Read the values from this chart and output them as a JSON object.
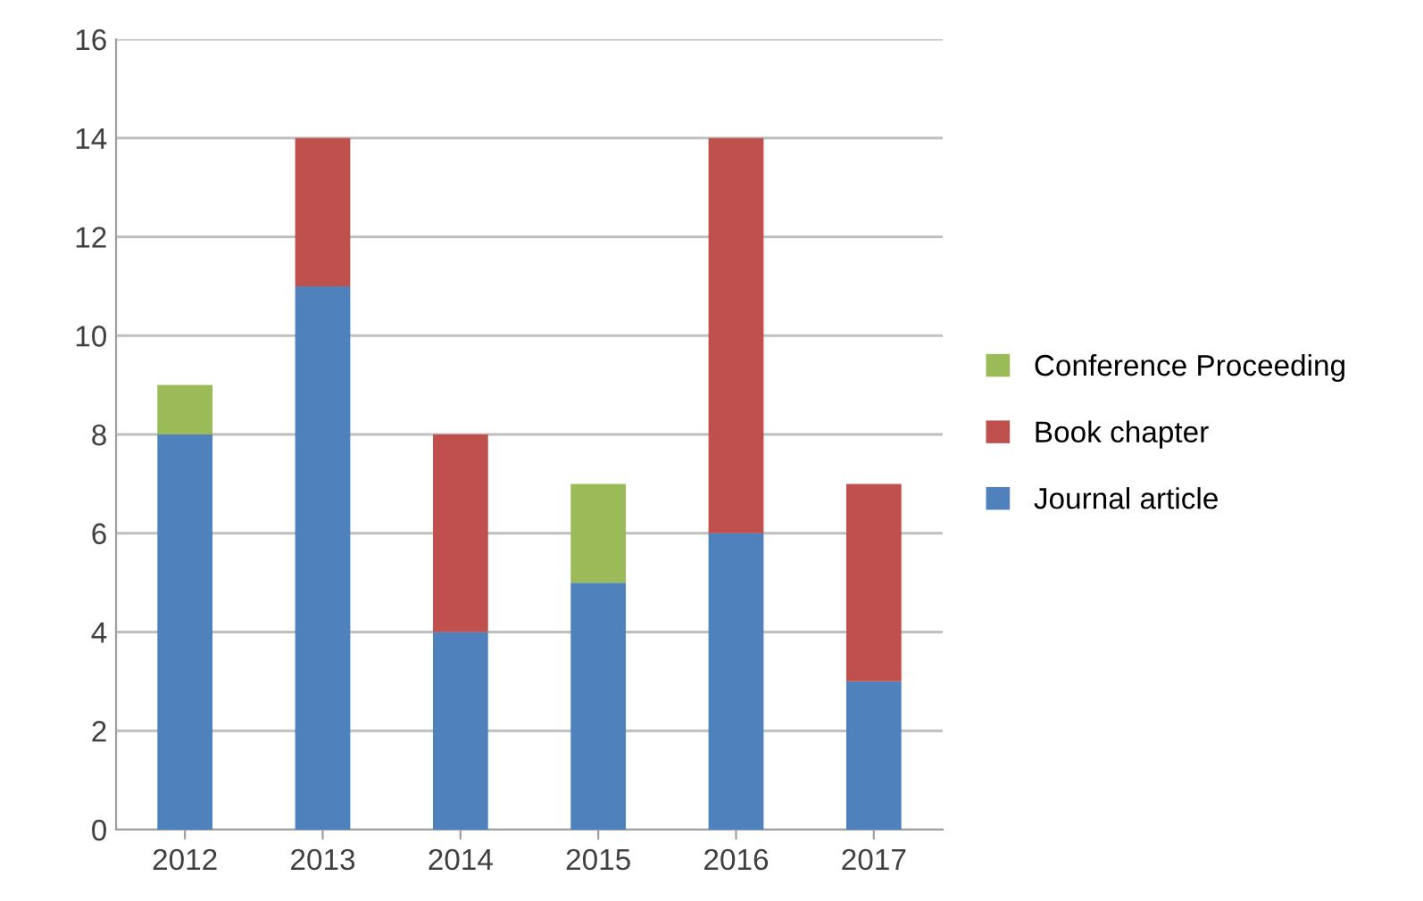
{
  "chart_data": {
    "type": "bar",
    "stacked": true,
    "categories": [
      "2012",
      "2013",
      "2014",
      "2015",
      "2016",
      "2017"
    ],
    "series": [
      {
        "name": "Journal article",
        "color": "#4f81bd",
        "values": [
          8,
          11,
          4,
          5,
          6,
          3
        ]
      },
      {
        "name": "Book chapter",
        "color": "#c0504d",
        "values": [
          null,
          3,
          4,
          null,
          8,
          4
        ]
      },
      {
        "name": "Conference Proceeding",
        "color": "#9bbb59",
        "values": [
          1,
          null,
          null,
          2,
          null,
          null
        ]
      }
    ],
    "ylim": [
      0,
      16
    ],
    "yticks": [
      0,
      2,
      4,
      6,
      8,
      10,
      12,
      14,
      16
    ],
    "grid": "y",
    "legend": "right"
  }
}
